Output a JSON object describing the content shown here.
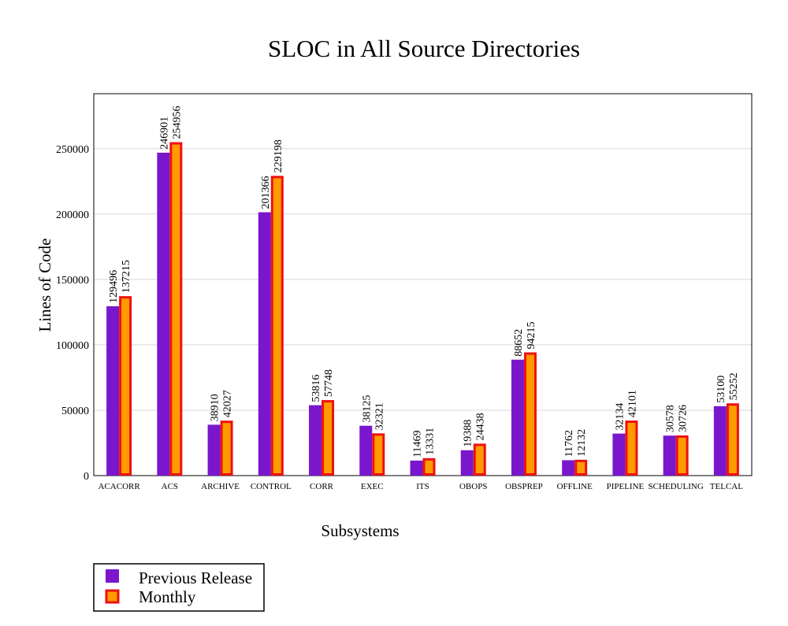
{
  "chart_data": {
    "type": "bar",
    "title": "SLOC in All Source Directories",
    "xlabel": "Subsystems",
    "ylabel": "Lines of Code",
    "ylim": [
      0,
      292000
    ],
    "yticks": [
      0,
      50000,
      100000,
      150000,
      200000,
      250000
    ],
    "grid": true,
    "legend_position": "bottom-left",
    "categories": [
      "ACACORR",
      "ACS",
      "ARCHIVE",
      "CONTROL",
      "CORR",
      "EXEC",
      "ITS",
      "OBOPS",
      "OBSPREP",
      "OFFLINE",
      "PIPELINE",
      "SCHEDULING",
      "TELCAL"
    ],
    "series": [
      {
        "name": "Previous Release",
        "fill": "#7a17cc",
        "values": [
          129496,
          246901,
          38910,
          201366,
          53816,
          38125,
          11469,
          19388,
          88652,
          11762,
          32134,
          30578,
          53100
        ]
      },
      {
        "name": "Monthly",
        "fill": "#ff9a00",
        "stroke": "#ee1111",
        "values": [
          137215,
          254956,
          42027,
          229198,
          57748,
          32321,
          13331,
          24438,
          94215,
          12132,
          42101,
          30726,
          55252
        ]
      }
    ]
  }
}
